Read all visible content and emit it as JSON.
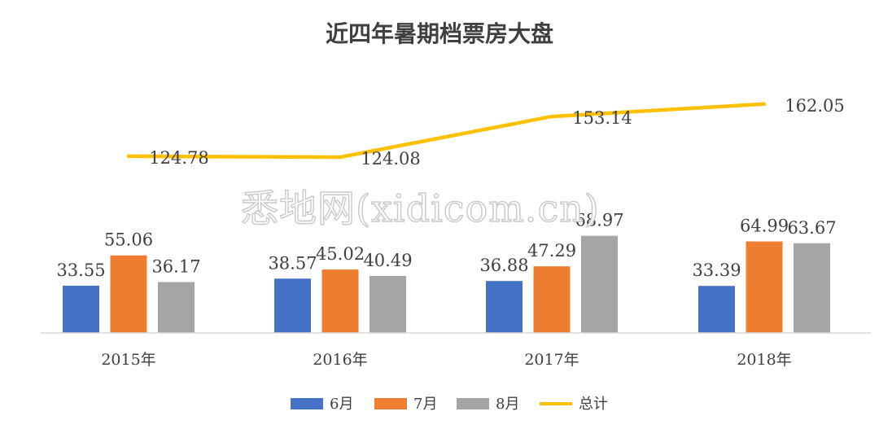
{
  "chart_data": {
    "type": "bar",
    "title": "近四年暑期档票房大盘",
    "categories": [
      "2015年",
      "2016年",
      "2017年",
      "2018年"
    ],
    "series": [
      {
        "name": "6月",
        "kind": "bar",
        "color": "#4472C4",
        "values": [
          33.55,
          38.57,
          36.88,
          33.39
        ]
      },
      {
        "name": "7月",
        "kind": "bar",
        "color": "#ED7D31",
        "values": [
          55.06,
          45.02,
          47.29,
          64.99
        ]
      },
      {
        "name": "8月",
        "kind": "bar",
        "color": "#A5A5A5",
        "values": [
          36.17,
          40.49,
          68.97,
          63.67
        ]
      },
      {
        "name": "总计",
        "kind": "line",
        "color": "#FFC000",
        "values": [
          124.78,
          124.08,
          153.14,
          162.05
        ]
      }
    ],
    "grid": false,
    "legend_position": "bottom"
  },
  "watermark": "悉地网(xidicom.cn)"
}
